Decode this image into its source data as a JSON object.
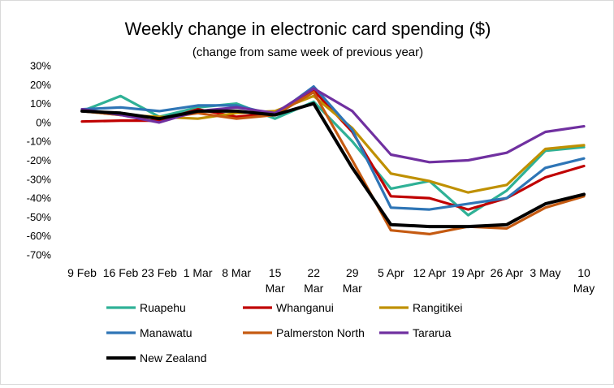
{
  "chart_data": {
    "type": "line",
    "title": "Weekly change in electronic card spending ($)",
    "subtitle": "(change from same week of previous year)",
    "categories": [
      [
        "9 Feb"
      ],
      [
        "16 Feb"
      ],
      [
        "23 Feb"
      ],
      [
        "1 Mar"
      ],
      [
        "8 Mar"
      ],
      [
        "15",
        "Mar"
      ],
      [
        "22",
        "Mar"
      ],
      [
        "29",
        "Mar"
      ],
      [
        "5 Apr"
      ],
      [
        "12 Apr"
      ],
      [
        "19 Apr"
      ],
      [
        "26 Apr"
      ],
      [
        "3 May"
      ],
      [
        "10",
        "May"
      ]
    ],
    "y_ticks": [
      "30%",
      "20%",
      "10%",
      "0%",
      "-10%",
      "-20%",
      "-30%",
      "-40%",
      "-50%",
      "-60%",
      "-70%"
    ],
    "ylim": [
      -70,
      30
    ],
    "y_unit": "%",
    "grid": false,
    "legend_position": "bottom",
    "series": [
      {
        "name": "Ruapehu",
        "color": "#2fb196",
        "values": [
          6,
          14,
          3,
          8,
          10,
          2,
          11,
          -10,
          -35,
          -31,
          -49,
          -36,
          -15,
          -13
        ]
      },
      {
        "name": "Whanganui",
        "color": "#c00000",
        "values": [
          0.5,
          1,
          1,
          7,
          3,
          5,
          17,
          -5,
          -39,
          -40,
          -46,
          -40,
          -29,
          -23
        ]
      },
      {
        "name": "Rangitikei",
        "color": "#bf9000",
        "values": [
          6,
          4,
          3,
          2,
          5,
          6,
          14,
          -3,
          -27,
          -31,
          -37,
          -33,
          -14,
          -12
        ]
      },
      {
        "name": "Manawatu",
        "color": "#2e75b6",
        "values": [
          7,
          8,
          6,
          9,
          9,
          4,
          19,
          -4,
          -45,
          -46,
          -43,
          -40,
          -24,
          -19
        ]
      },
      {
        "name": "Palmerston North",
        "color": "#c55a11",
        "values": [
          6,
          4,
          2,
          5,
          2,
          4,
          16,
          -20,
          -57,
          -59,
          -55,
          -56,
          -45,
          -39
        ]
      },
      {
        "name": "Tararua",
        "color": "#7030a0",
        "values": [
          7,
          4,
          0,
          6,
          8,
          5,
          18,
          6,
          -17,
          -21,
          -20,
          -16,
          -5,
          -2
        ]
      },
      {
        "name": "New Zealand",
        "color": "#000000",
        "values": [
          6,
          5,
          2,
          6,
          6,
          4,
          10,
          -24,
          -54,
          -55,
          -55,
          -54,
          -43,
          -38
        ]
      }
    ]
  }
}
